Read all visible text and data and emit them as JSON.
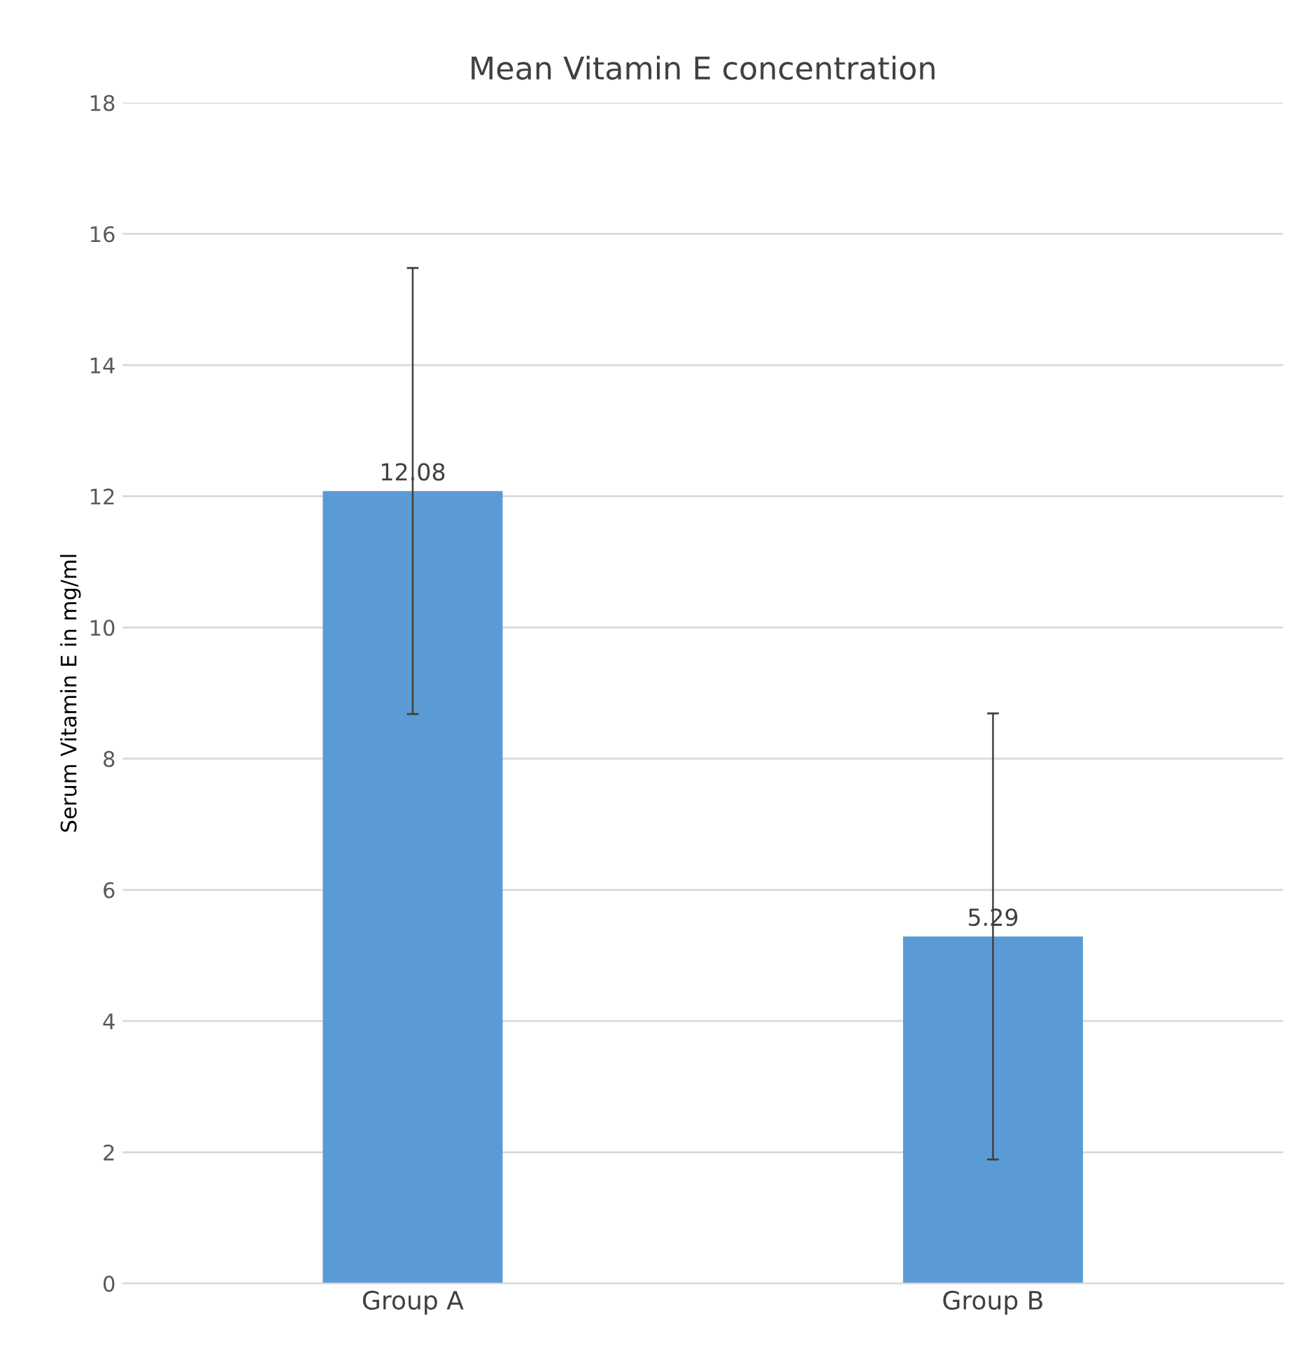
{
  "chart_data": {
    "type": "bar",
    "title": "Mean Vitamin E concentration",
    "ylabel": "Serum Vitamin E in mg/ml",
    "categories": [
      "Group A",
      "Group B"
    ],
    "values": [
      12.08,
      5.29
    ],
    "errors": [
      3.4,
      3.4
    ],
    "color": "#5b9bd5",
    "data_labels": true,
    "ylim": [
      0,
      18
    ],
    "yticks": [
      0,
      2,
      4,
      6,
      8,
      10,
      12,
      14,
      16,
      18
    ],
    "grid": "y"
  }
}
